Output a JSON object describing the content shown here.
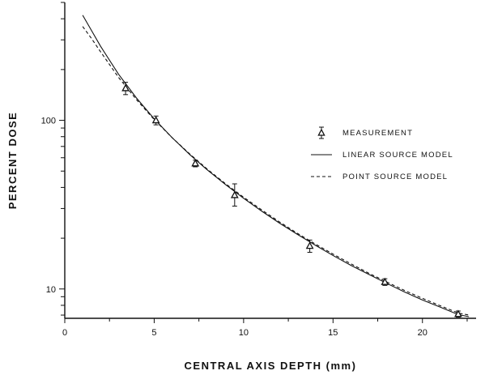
{
  "chart_data": {
    "type": "line",
    "xlabel": "CENTRAL AXIS DEPTH  (mm)",
    "ylabel": "PERCENT DOSE",
    "xlim": [
      0,
      23
    ],
    "ylim": [
      6.7,
      500
    ],
    "y_scale": "log",
    "x_ticks": [
      {
        "value": 0,
        "label": "0"
      },
      {
        "value": 5,
        "label": "5"
      },
      {
        "value": 10,
        "label": "10"
      },
      {
        "value": 15,
        "label": "15"
      },
      {
        "value": 20,
        "label": "20"
      }
    ],
    "y_ticks": [
      {
        "value": 10,
        "label": "10"
      },
      {
        "value": 100,
        "label": "100"
      }
    ],
    "grid": false,
    "legend_position": "right",
    "series": [
      {
        "name": "MEASUREMENT",
        "style": "triangle markers with error bars",
        "points": [
          {
            "x": 3.4,
            "y": 155,
            "err_lo": 142,
            "err_hi": 168
          },
          {
            "x": 5.1,
            "y": 100,
            "err_lo": 94,
            "err_hi": 106
          },
          {
            "x": 7.3,
            "y": 55.5,
            "err_lo": 53,
            "err_hi": 58
          },
          {
            "x": 9.5,
            "y": 36,
            "err_lo": 31,
            "err_hi": 42
          },
          {
            "x": 13.7,
            "y": 18,
            "err_lo": 16.5,
            "err_hi": 19.5
          },
          {
            "x": 17.9,
            "y": 11,
            "err_lo": 10.5,
            "err_hi": 11.5
          },
          {
            "x": 22.0,
            "y": 7.1,
            "err_lo": 6.8,
            "err_hi": 7.4
          }
        ]
      },
      {
        "name": "LINEAR SOURCE MODEL",
        "style": "solid",
        "x": [
          1.0,
          1.5,
          2.0,
          3.0,
          4.0,
          5.0,
          6.0,
          7.0,
          8.0,
          9.0,
          10.0,
          11.0,
          12.0,
          13.0,
          14.0,
          15.0,
          16.0,
          17.0,
          18.0,
          19.0,
          20.0,
          21.0,
          22.0,
          22.6
        ],
        "y": [
          420,
          340,
          275,
          188,
          136,
          102,
          79,
          62.5,
          50.5,
          41.5,
          34.5,
          29,
          24.6,
          21.1,
          18.2,
          15.8,
          13.8,
          12.2,
          10.8,
          9.6,
          8.6,
          7.8,
          7.05,
          6.85
        ]
      },
      {
        "name": "POINT SOURCE MODEL",
        "style": "dashed",
        "x": [
          1.0,
          1.5,
          2.0,
          3.0,
          4.0,
          5.0,
          6.0,
          7.0,
          8.0,
          9.0,
          10.0,
          11.0,
          12.0,
          13.0,
          14.0,
          15.0,
          16.0,
          17.0,
          18.0,
          19.0,
          20.0,
          21.0,
          22.0,
          22.6
        ],
        "y": [
          360,
          305,
          255,
          180,
          133,
          101,
          79,
          63,
          51,
          42,
          35,
          29.5,
          25,
          21.4,
          18.5,
          16.1,
          14.1,
          12.4,
          11,
          9.8,
          8.8,
          7.95,
          7.2,
          7.0
        ]
      }
    ]
  }
}
